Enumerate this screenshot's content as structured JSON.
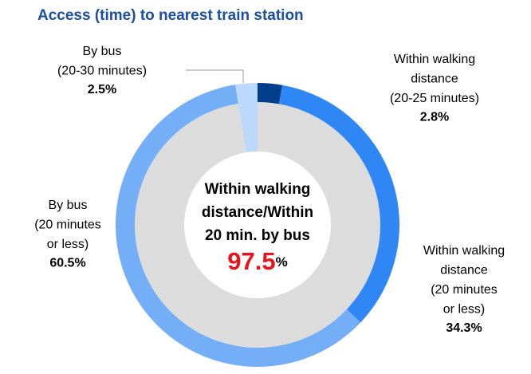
{
  "chart_data": {
    "type": "donut",
    "title": "Access (time) to nearest train station",
    "categories": [
      [
        "Within walking",
        "distance",
        "(20-25 minutes)"
      ],
      [
        "Within walking",
        "distance",
        "(20 minutes",
        "or less)"
      ],
      [
        "By bus",
        "(20 minutes",
        "or less)"
      ],
      [
        "By bus",
        "(20-30 minutes)"
      ]
    ],
    "values": [
      2.8,
      34.3,
      60.5,
      2.5
    ],
    "value_labels": [
      "2.8%",
      "34.3%",
      "60.5%",
      "2.5%"
    ],
    "colors": [
      "#003e8c",
      "#2f87f5",
      "#73aef7",
      "#bcd9fb"
    ],
    "center_label": [
      "Within walking",
      "distance/Within",
      "20 min. by bus"
    ],
    "center_value": 97.5,
    "center_unit": "%",
    "center_color": "#e8141b",
    "center_ring_color": "#dcdcdc"
  }
}
